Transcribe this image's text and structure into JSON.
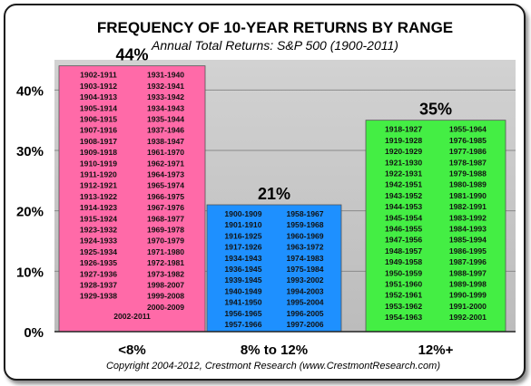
{
  "chart_data": {
    "type": "bar",
    "title": "FREQUENCY OF 10-YEAR RETURNS BY RANGE",
    "subtitle": "Annual Total Returns: S&P 500  (1900-2011)",
    "categories": [
      "<8%",
      "8%  to  12%",
      "12%+"
    ],
    "values": [
      44,
      21,
      35
    ],
    "value_labels": [
      "44%",
      "21%",
      "35%"
    ],
    "ylim": [
      0,
      45
    ],
    "yticks": [
      0,
      10,
      20,
      30,
      40
    ],
    "ytick_labels": [
      "0%",
      "10%",
      "20%",
      "30%",
      "40%"
    ],
    "grid": true,
    "colors": [
      "#ff6aa8",
      "#1e90ff",
      "#44ee44"
    ],
    "plot_background": "#c8c8c8",
    "periods": [
      {
        "columns": [
          [
            "1902-1911",
            "1903-1912",
            "1904-1913",
            "1905-1914",
            "1906-1915",
            "1907-1916",
            "1908-1917",
            "1909-1918",
            "1910-1919",
            "1911-1920",
            "1912-1921",
            "1913-1922",
            "1914-1923",
            "1915-1924",
            "1923-1932",
            "1924-1933",
            "1925-1934",
            "1926-1935",
            "1927-1936",
            "1928-1937",
            "1929-1938"
          ],
          [
            "1931-1940",
            "1932-1941",
            "1933-1942",
            "1934-1943",
            "1935-1944",
            "1937-1946",
            "1938-1947",
            "1961-1970",
            "1962-1971",
            "1964-1973",
            "1965-1974",
            "1966-1975",
            "1967-1976",
            "1968-1977",
            "1969-1978",
            "1970-1979",
            "1971-1980",
            "1972-1981",
            "1973-1982",
            "1998-2007",
            "1999-2008",
            "2000-2009"
          ]
        ],
        "extra": "2002-2011"
      },
      {
        "columns": [
          [
            "1900-1909",
            "1901-1910",
            "1916-1925",
            "1917-1926",
            "1934-1943",
            "1936-1945",
            "1939-1945",
            "1940-1949",
            "1941-1950",
            "1956-1965",
            "1957-1966"
          ],
          [
            "1958-1967",
            "1959-1968",
            "1960-1969",
            "1963-1972",
            "1974-1983",
            "1975-1984",
            "1993-2002",
            "1994-2003",
            "1995-2004",
            "1996-2005",
            "1997-2006"
          ]
        ]
      },
      {
        "columns": [
          [
            "1918-1927",
            "1919-1928",
            "1920-1929",
            "1921-1930",
            "1922-1931",
            "1942-1951",
            "1943-1952",
            "1944-1953",
            "1945-1954",
            "1946-1955",
            "1947-1956",
            "1948-1957",
            "1949-1958",
            "1950-1959",
            "1951-1960",
            "1952-1961",
            "1953-1962",
            "1954-1963"
          ],
          [
            "1955-1964",
            "1976-1985",
            "1977-1986",
            "1978-1987",
            "1979-1988",
            "1980-1989",
            "1981-1990",
            "1982-1991",
            "1983-1992",
            "1984-1993",
            "1985-1994",
            "1986-1995",
            "1987-1996",
            "1988-1997",
            "1989-1998",
            "1990-1999",
            "1991-2000",
            "1992-2001"
          ]
        ]
      }
    ]
  },
  "footer": "Copyright 2004-2012, Crestmont Research (www.CrestmontResearch.com)"
}
